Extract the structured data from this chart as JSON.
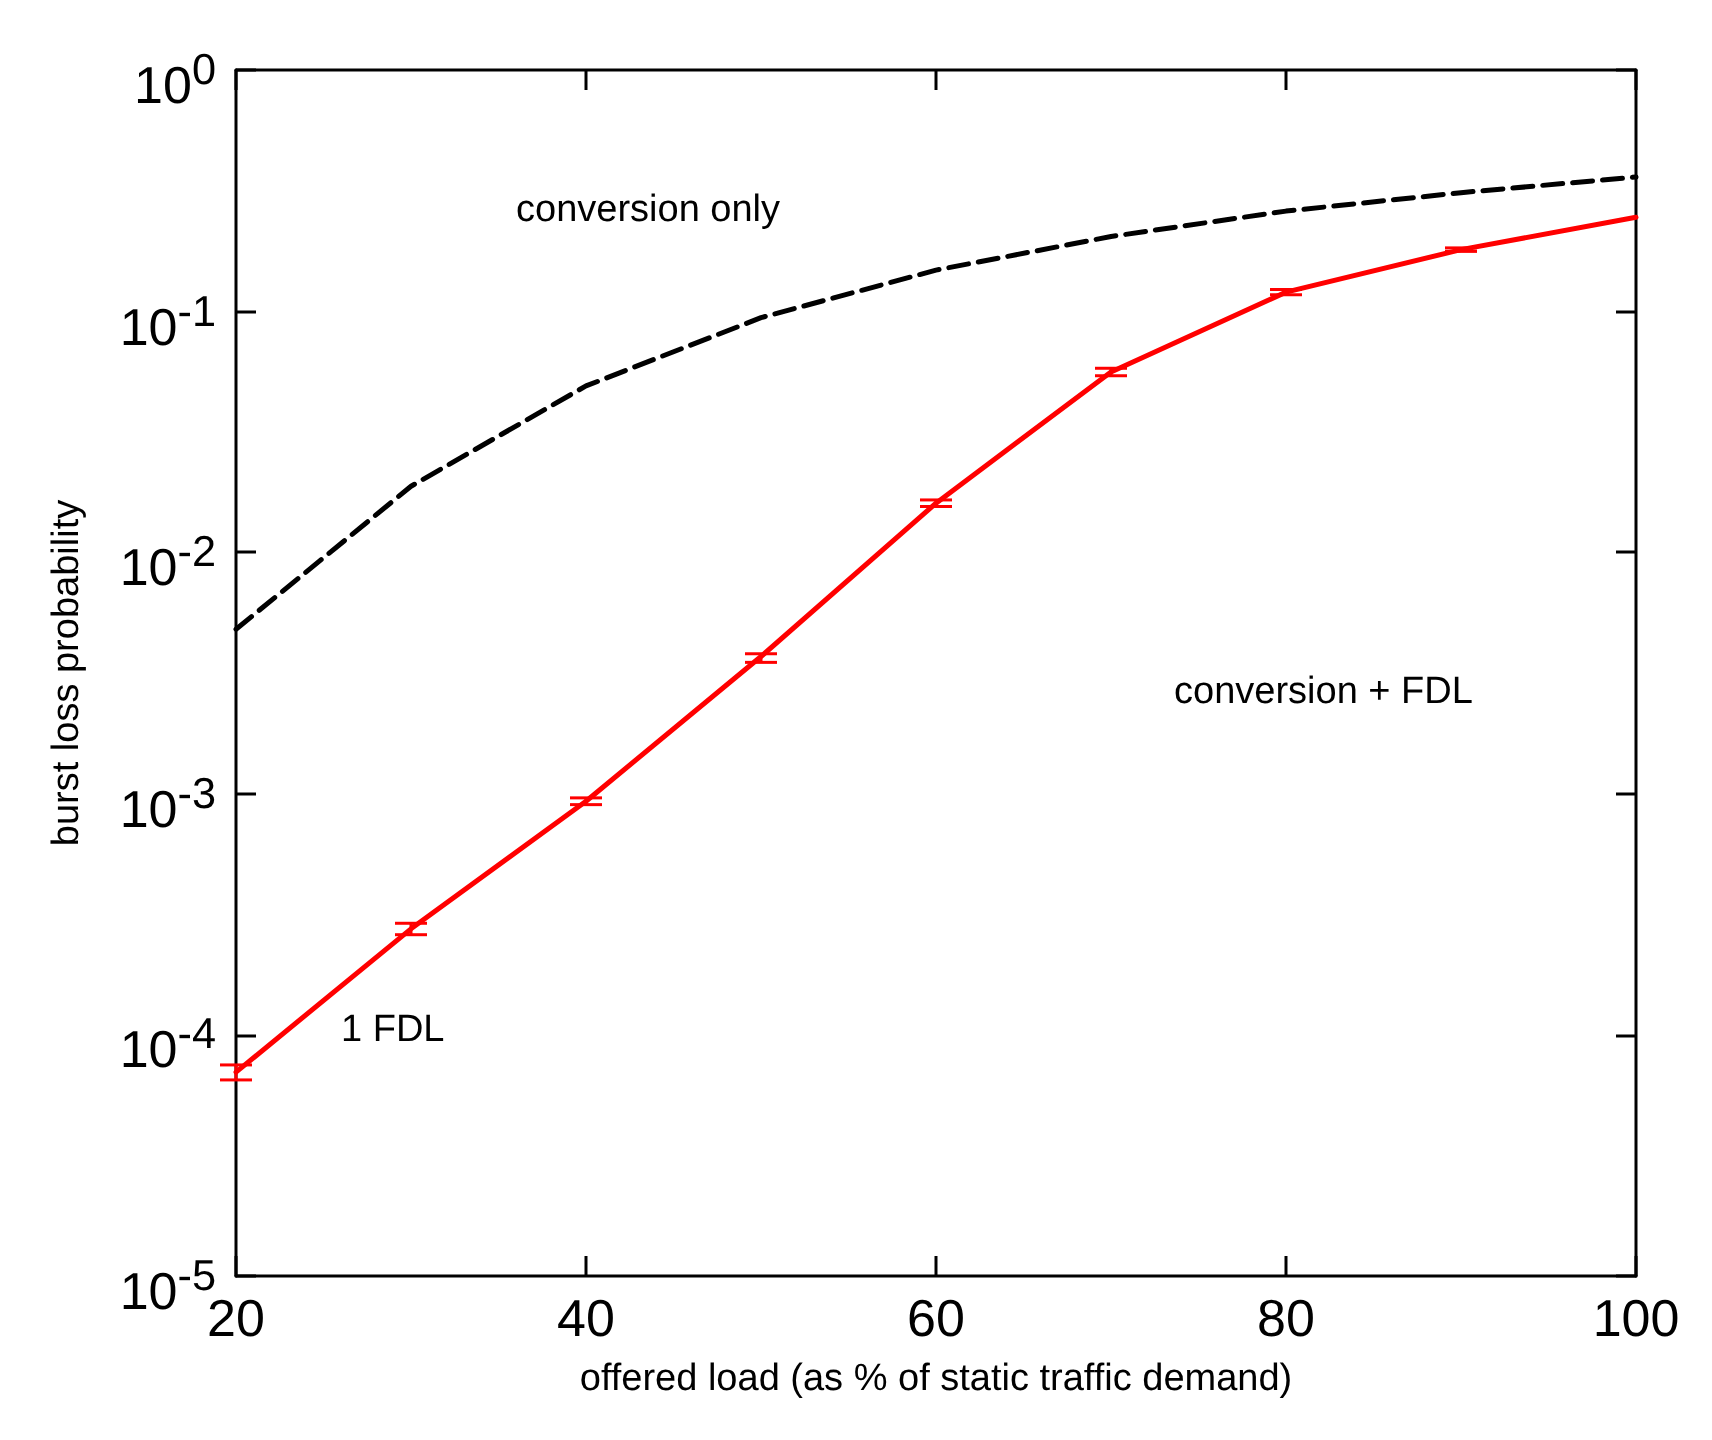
{
  "chart_data": {
    "type": "line",
    "xlabel": "offered load (as % of static traffic demand)",
    "ylabel": "burst loss probability",
    "x": [
      20,
      30,
      40,
      50,
      60,
      70,
      80,
      90,
      100
    ],
    "series": [
      {
        "color": "#000000",
        "line_style": "dashed",
        "values": [
          0.0048,
          0.0188,
          0.049,
          0.094,
          0.148,
          0.204,
          0.26,
          0.31,
          0.36
        ]
      },
      {
        "color": "#ff0000",
        "line_style": "solid",
        "values": [
          7e-05,
          0.000275,
          0.00093,
          0.0037,
          0.016,
          0.056,
          0.12,
          0.18,
          0.245
        ],
        "errors": [
          [
            6.5e-05,
            7.5e-05
          ],
          [
            0.00026,
            0.00029
          ],
          [
            0.0009,
            0.00096
          ],
          [
            0.0035,
            0.0038
          ],
          [
            0.0155,
            0.0165
          ],
          [
            0.054,
            0.058
          ],
          [
            0.117,
            0.123
          ],
          [
            0.177,
            0.183
          ],
          null
        ]
      }
    ],
    "xlim": [
      20,
      100
    ],
    "xticks": [
      20,
      40,
      60,
      80,
      100
    ],
    "ylim": [
      1e-05,
      1
    ],
    "log": "y",
    "yticks": [
      {
        "value": 1e-05,
        "label": "10$^{-5}$"
      },
      {
        "value": 0.0001,
        "label": "10$^{-4}$"
      },
      {
        "value": 0.001,
        "label": "10$^{-3}$"
      },
      {
        "value": 0.01,
        "label": "10$^{-2}$"
      },
      {
        "value": 0.1,
        "label": "10$^{-1}$"
      },
      {
        "value": 1,
        "label": "10$^{0}$"
      }
    ],
    "annotations": [
      "conversion only",
      "conversion + FDL",
      "1 FDL"
    ],
    "grid": false,
    "marker": "none"
  }
}
